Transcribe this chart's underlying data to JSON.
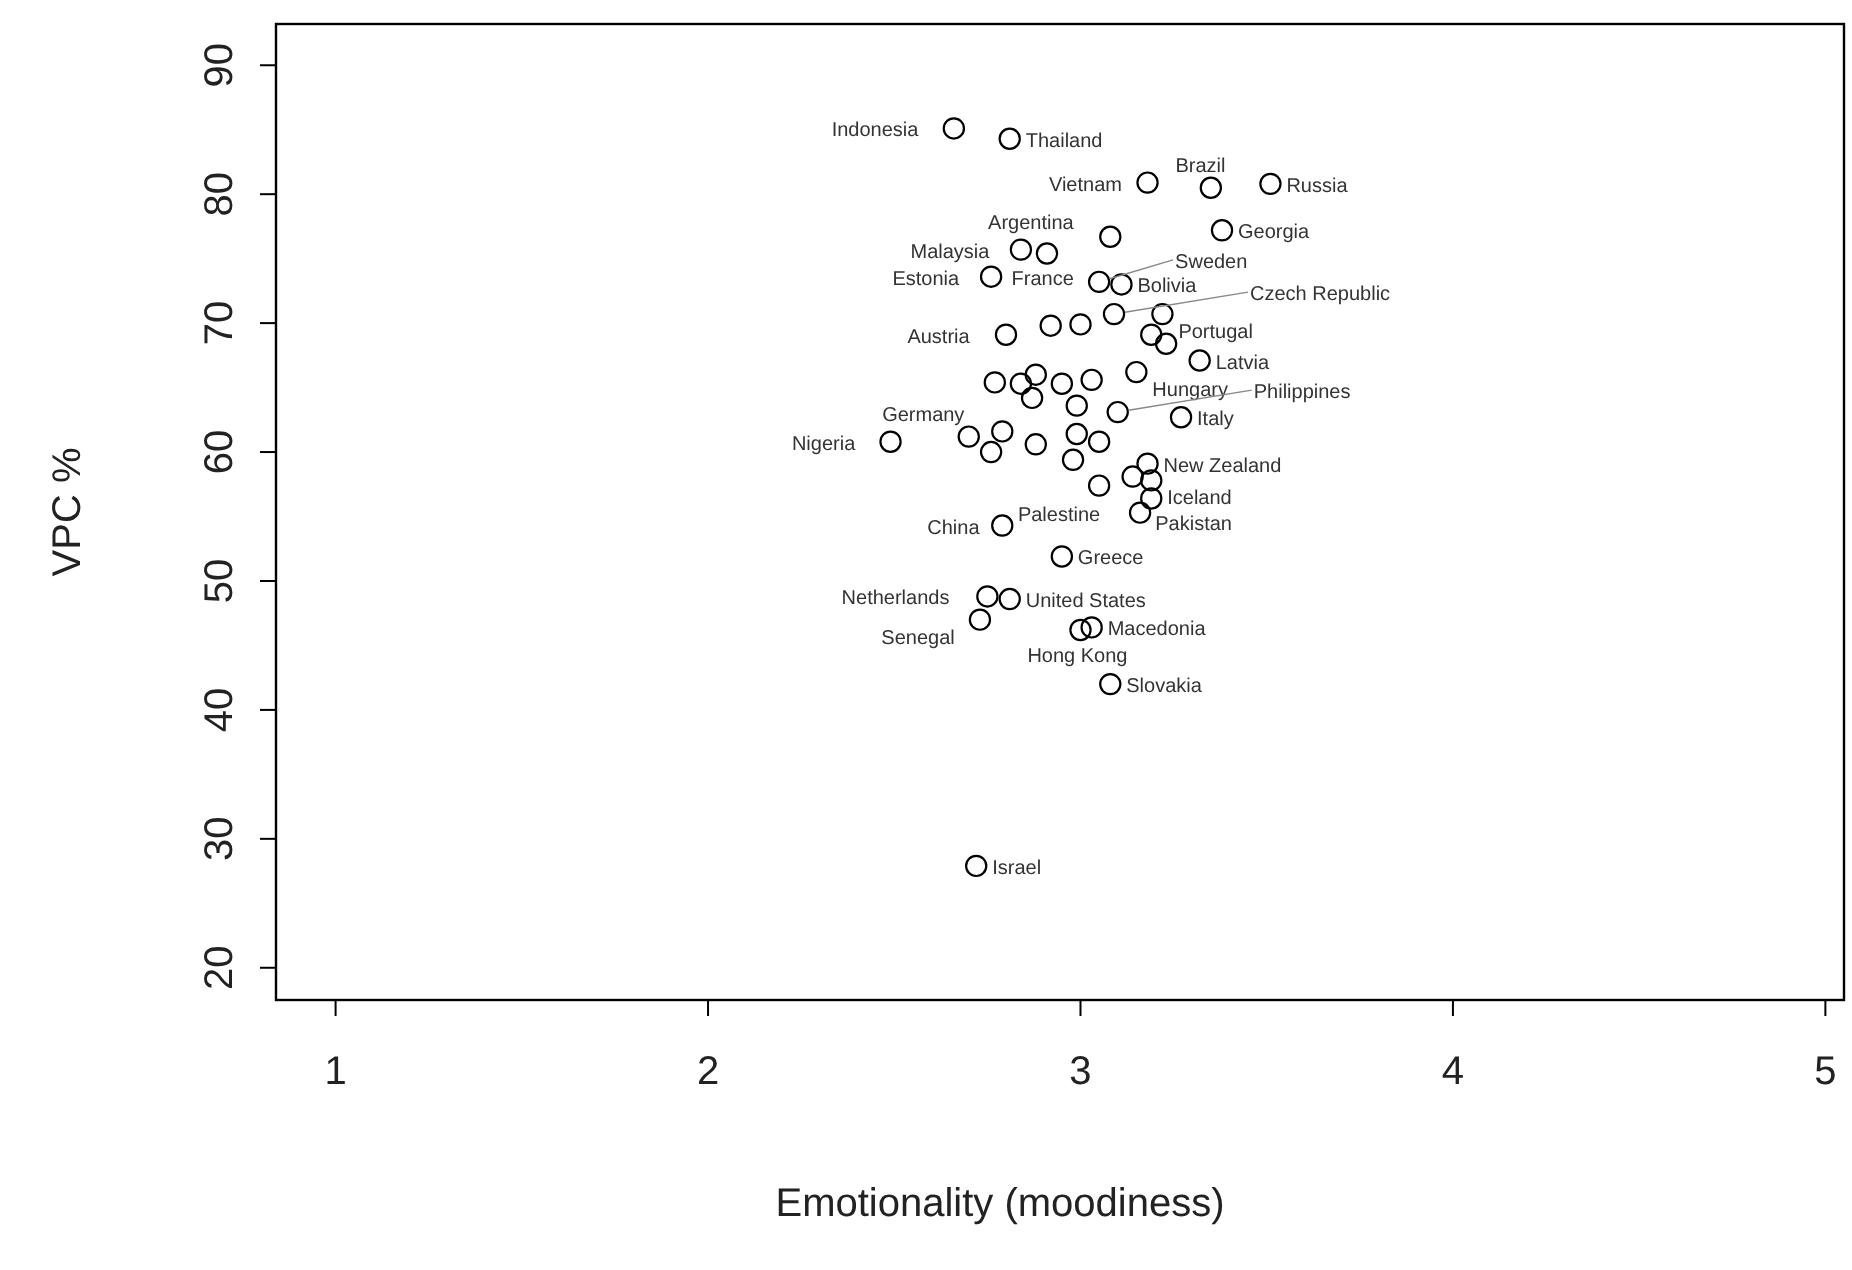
{
  "chart_data": {
    "type": "scatter",
    "xlabel": "Emotionality (moodiness)",
    "ylabel": "VPC %",
    "xlim": [
      0.84,
      5.05
    ],
    "ylim": [
      17.5,
      93.2
    ],
    "xticks": [
      1,
      2,
      3,
      4,
      5
    ],
    "yticks": [
      20,
      30,
      40,
      50,
      60,
      70,
      80,
      90
    ],
    "grid": false,
    "marker": "circle",
    "series": [
      {
        "color": "#000000",
        "x": [
          2.66,
          2.81,
          3.18,
          3.51,
          3.35,
          3.38,
          3.08,
          2.84,
          2.91,
          2.76,
          3.05,
          3.11,
          3.09,
          3.22,
          2.8,
          3.32,
          3.15,
          3.1,
          3.27,
          2.49,
          2.7,
          3.18,
          3.19,
          3.19,
          3.16,
          2.79,
          2.95,
          2.75,
          2.81,
          2.73,
          3.0,
          3.03,
          3.08,
          2.72,
          2.92,
          3.0,
          3.19,
          3.23,
          2.88,
          2.84,
          2.77,
          2.95,
          3.03,
          2.87,
          2.99,
          2.99,
          2.79,
          2.88,
          2.76,
          3.05,
          2.98,
          3.14,
          3.05
        ],
        "values": [
          85.1,
          84.3,
          80.9,
          80.8,
          80.5,
          77.2,
          76.7,
          75.7,
          75.4,
          73.6,
          73.2,
          73.0,
          70.7,
          70.7,
          69.1,
          67.1,
          66.2,
          63.1,
          62.7,
          60.8,
          61.2,
          59.1,
          57.8,
          56.4,
          55.3,
          54.3,
          51.9,
          48.8,
          48.6,
          47.0,
          46.2,
          46.4,
          42.0,
          27.9,
          69.8,
          69.9,
          69.1,
          68.4,
          66.0,
          65.3,
          65.4,
          65.3,
          65.6,
          64.2,
          63.6,
          61.4,
          61.6,
          60.6,
          60.0,
          60.8,
          59.4,
          58.1,
          57.4
        ],
        "value_labels": [
          "Indonesia",
          "Thailand",
          "Vietnam",
          "Russia",
          "Brazil",
          "Georgia",
          "Argentina",
          "Malaysia",
          "France",
          "Estonia",
          "Sweden",
          "Bolivia",
          "Czech Republic",
          "Portugal",
          "Austria",
          "Latvia",
          "Hungary",
          "Philippines",
          "Italy",
          "Nigeria",
          "Germany",
          "New Zealand",
          "Iceland",
          "Pakistan",
          "Palestine",
          "China",
          "Greece",
          "Netherlands",
          "United States",
          "Senegal",
          "Hong Kong",
          "Macedonia",
          "Slovakia",
          "Israel",
          null,
          null,
          null,
          null,
          null,
          null,
          null,
          null,
          null,
          null,
          null,
          null,
          null,
          null,
          null,
          null,
          null,
          null,
          null
        ]
      }
    ]
  }
}
